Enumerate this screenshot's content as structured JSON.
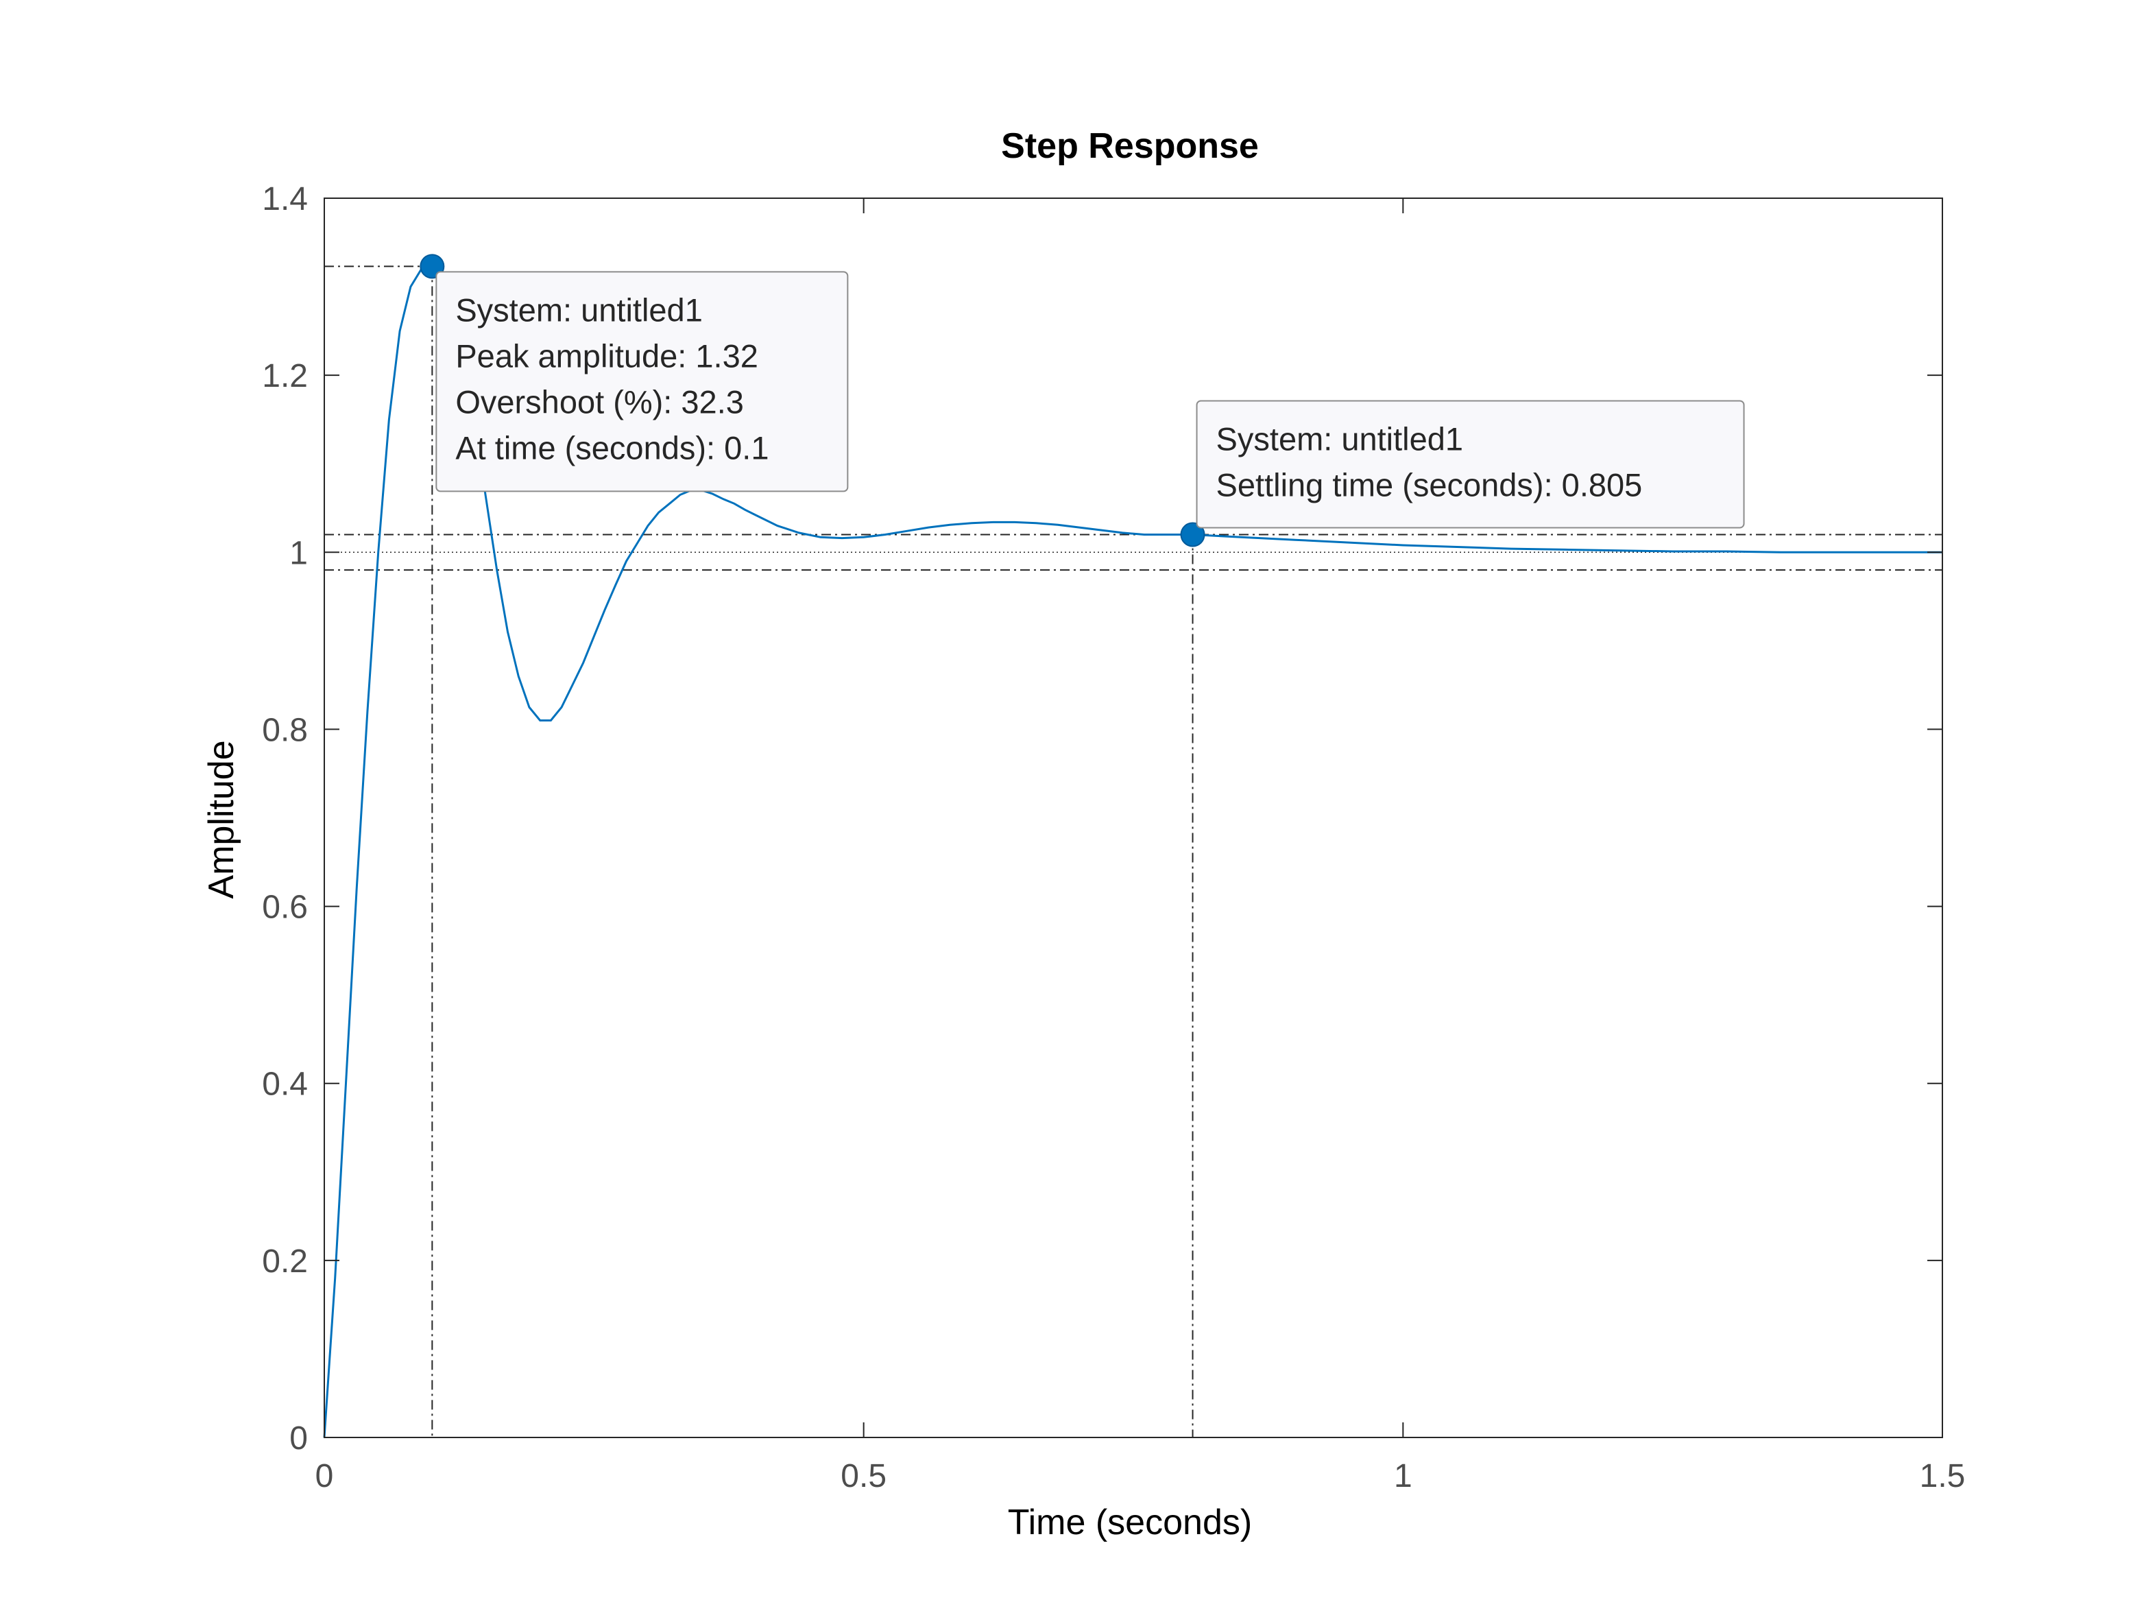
{
  "chart_data": {
    "type": "line",
    "title": "Step Response",
    "xlabel": "Time (seconds)",
    "ylabel": "Amplitude",
    "xlim": [
      0,
      1.5
    ],
    "ylim": [
      0,
      1.4
    ],
    "xticks": [
      0,
      0.5,
      1,
      1.5
    ],
    "xtick_labels": [
      "0",
      "0.5",
      "1",
      "1.5"
    ],
    "yticks": [
      0,
      0.2,
      0.4,
      0.6,
      0.8,
      1,
      1.2,
      1.4
    ],
    "ytick_labels": [
      "0",
      "0.2",
      "0.4",
      "0.6",
      "0.8",
      "1",
      "1.2",
      "1.4"
    ],
    "grid": false,
    "line_color": "#0072bd",
    "final_value": 1,
    "settling_band": [
      0.98,
      1.02
    ],
    "series": [
      {
        "x": [
          0,
          0.01,
          0.02,
          0.03,
          0.04,
          0.05,
          0.06,
          0.07,
          0.08,
          0.09,
          0.1,
          0.11,
          0.12,
          0.13,
          0.14,
          0.15,
          0.16,
          0.17,
          0.18,
          0.19,
          0.2,
          0.21,
          0.22,
          0.23,
          0.24,
          0.25,
          0.26,
          0.27,
          0.28,
          0.29,
          0.3,
          0.31,
          0.32,
          0.33,
          0.34,
          0.35,
          0.36,
          0.37,
          0.38,
          0.39,
          0.4,
          0.42,
          0.44,
          0.46,
          0.48,
          0.5,
          0.52,
          0.54,
          0.56,
          0.58,
          0.6,
          0.62,
          0.64,
          0.66,
          0.68,
          0.7,
          0.72,
          0.74,
          0.76,
          0.78,
          0.8,
          0.805,
          0.85,
          0.9,
          0.95,
          1.0,
          1.05,
          1.1,
          1.15,
          1.2,
          1.25,
          1.3,
          1.35,
          1.4,
          1.45,
          1.5
        ],
        "y": [
          0,
          0.18,
          0.4,
          0.62,
          0.82,
          1.0,
          1.15,
          1.25,
          1.3,
          1.32,
          1.323,
          1.31,
          1.28,
          1.22,
          1.14,
          1.06,
          0.98,
          0.91,
          0.86,
          0.825,
          0.81,
          0.81,
          0.825,
          0.85,
          0.875,
          0.905,
          0.935,
          0.963,
          0.99,
          1.01,
          1.03,
          1.045,
          1.055,
          1.065,
          1.07,
          1.07,
          1.066,
          1.06,
          1.055,
          1.048,
          1.042,
          1.03,
          1.022,
          1.017,
          1.016,
          1.017,
          1.02,
          1.024,
          1.028,
          1.031,
          1.033,
          1.034,
          1.034,
          1.033,
          1.031,
          1.028,
          1.025,
          1.022,
          1.02,
          1.02,
          1.02,
          1.02,
          1.017,
          1.014,
          1.011,
          1.008,
          1.006,
          1.004,
          1.003,
          1.002,
          1.001,
          1.001,
          1.0,
          1.0,
          1.0,
          1.0
        ]
      }
    ],
    "markers": [
      {
        "x": 0.1,
        "y": 1.323
      },
      {
        "x": 0.805,
        "y": 1.02
      }
    ],
    "datatips": [
      {
        "lines": [
          "System: untitled1",
          "Peak amplitude: 1.32",
          "Overshoot (%): 32.3",
          "At time (seconds): 0.1"
        ]
      },
      {
        "lines": [
          "System: untitled1",
          "Settling time (seconds): 0.805"
        ]
      }
    ]
  }
}
